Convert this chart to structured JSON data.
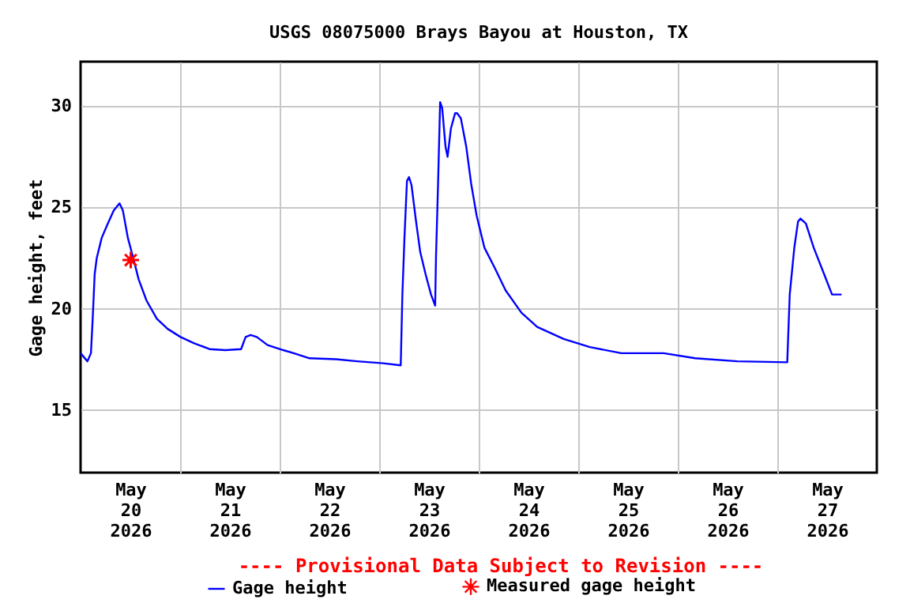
{
  "chart_data": {
    "type": "line",
    "title": "USGS 08075000 Brays Bayou at Houston, TX",
    "ylabel": "Gage height, feet",
    "annotations": [
      "---- Provisional Data Subject to Revision ----"
    ],
    "xlim": [
      "2026-05-20T00:00",
      "2026-05-28T00:00"
    ],
    "ylim": [
      11.9,
      32.2
    ],
    "yticks": [
      15,
      20,
      25,
      30
    ],
    "xticks": [
      {
        "value": "2026-05-20T12:00",
        "label": "May 20 2026"
      },
      {
        "value": "2026-05-21T00:00",
        "label": null
      },
      {
        "value": "2026-05-21T12:00",
        "label": "May 21 2026"
      },
      {
        "value": "2026-05-22T00:00",
        "label": null
      },
      {
        "value": "2026-05-22T12:00",
        "label": "May 22 2026"
      },
      {
        "value": "2026-05-23T00:00",
        "label": null
      },
      {
        "value": "2026-05-23T12:00",
        "label": "May 23 2026"
      },
      {
        "value": "2026-05-24T00:00",
        "label": null
      },
      {
        "value": "2026-05-24T12:00",
        "label": "May 24 2026"
      },
      {
        "value": "2026-05-25T00:00",
        "label": null
      },
      {
        "value": "2026-05-25T12:00",
        "label": "May 25 2026"
      },
      {
        "value": "2026-05-26T00:00",
        "label": null
      },
      {
        "value": "2026-05-26T12:00",
        "label": "May 26 2026"
      },
      {
        "value": "2026-05-27T00:00",
        "label": null
      },
      {
        "value": "2026-05-27T12:00",
        "label": "May 27 2026"
      }
    ],
    "grid": true,
    "legend": "bottom",
    "series": [
      {
        "name": "Gage height",
        "color": "#0000ff",
        "x": [
          "2026-05-20T00:00",
          "2026-05-20T01:39",
          "2026-05-20T02:30",
          "2026-05-20T02:54",
          "2026-05-20T03:24",
          "2026-05-20T03:54",
          "2026-05-20T05:06",
          "2026-05-20T06:21",
          "2026-05-20T08:00",
          "2026-05-20T09:24",
          "2026-05-20T10:12",
          "2026-05-20T11:24",
          "2026-05-20T12:42",
          "2026-05-20T14:00",
          "2026-05-20T15:54",
          "2026-05-20T18:24",
          "2026-05-20T21:00",
          "2026-05-21T00:06",
          "2026-05-21T03:18",
          "2026-05-21T07:06",
          "2026-05-21T10:54",
          "2026-05-21T14:42",
          "2026-05-21T15:48",
          "2026-05-21T17:00",
          "2026-05-21T18:30",
          "2026-05-21T21:06",
          "2026-05-22T00:54",
          "2026-05-22T03:24",
          "2026-05-22T07:12",
          "2026-05-22T13:36",
          "2026-05-22T18:42",
          "2026-05-23T01:00",
          "2026-05-23T05:12",
          "2026-05-23T05:36",
          "2026-05-23T06:06",
          "2026-05-23T06:42",
          "2026-05-23T07:12",
          "2026-05-23T07:48",
          "2026-05-23T08:54",
          "2026-05-23T09:54",
          "2026-05-23T11:12",
          "2026-05-23T12:30",
          "2026-05-23T13:30",
          "2026-05-23T13:42",
          "2026-05-23T14:12",
          "2026-05-23T14:42",
          "2026-05-23T15:12",
          "2026-05-23T16:00",
          "2026-05-23T16:30",
          "2026-05-23T17:18",
          "2026-05-23T18:18",
          "2026-05-23T18:48",
          "2026-05-23T19:42",
          "2026-05-23T21:00",
          "2026-05-23T22:12",
          "2026-05-23T23:30",
          "2026-05-24T01:24",
          "2026-05-24T03:54",
          "2026-05-24T06:30",
          "2026-05-24T10:18",
          "2026-05-24T14:06",
          "2026-05-24T20:30",
          "2026-05-25T02:48",
          "2026-05-25T10:24",
          "2026-05-25T20:36",
          "2026-05-26T04:12",
          "2026-05-26T14:24",
          "2026-05-27T02:24",
          "2026-05-27T03:00",
          "2026-05-27T04:06",
          "2026-05-27T05:00",
          "2026-05-27T05:36",
          "2026-05-27T06:54",
          "2026-05-27T08:48",
          "2026-05-27T11:18",
          "2026-05-27T13:12",
          "2026-05-27T15:30"
        ],
        "values": [
          17.8,
          17.4,
          17.8,
          19.4,
          21.7,
          22.5,
          23.5,
          24.1,
          24.85,
          25.2,
          24.85,
          23.5,
          22.5,
          21.45,
          20.4,
          19.5,
          19.0,
          18.6,
          18.3,
          18.0,
          17.95,
          18.0,
          18.6,
          18.7,
          18.6,
          18.2,
          17.95,
          17.8,
          17.55,
          17.5,
          17.4,
          17.3,
          17.2,
          20.7,
          23.5,
          26.3,
          26.5,
          26.1,
          24.3,
          22.8,
          21.7,
          20.7,
          20.15,
          22.5,
          26.15,
          30.2,
          29.9,
          28.0,
          27.5,
          28.9,
          29.65,
          29.65,
          29.4,
          28.0,
          26.15,
          24.6,
          23.0,
          22.0,
          20.9,
          19.8,
          19.1,
          18.5,
          18.1,
          17.8,
          17.8,
          17.55,
          17.4,
          17.35,
          20.7,
          23.0,
          24.3,
          24.45,
          24.2,
          23.0,
          21.7,
          20.7,
          20.7
        ]
      },
      {
        "name": "Measured gage height",
        "color": "#ff0000",
        "type": "scatter",
        "marker": "cross",
        "x": [
          "2026-05-20T12:06"
        ],
        "values": [
          22.4
        ]
      }
    ]
  }
}
